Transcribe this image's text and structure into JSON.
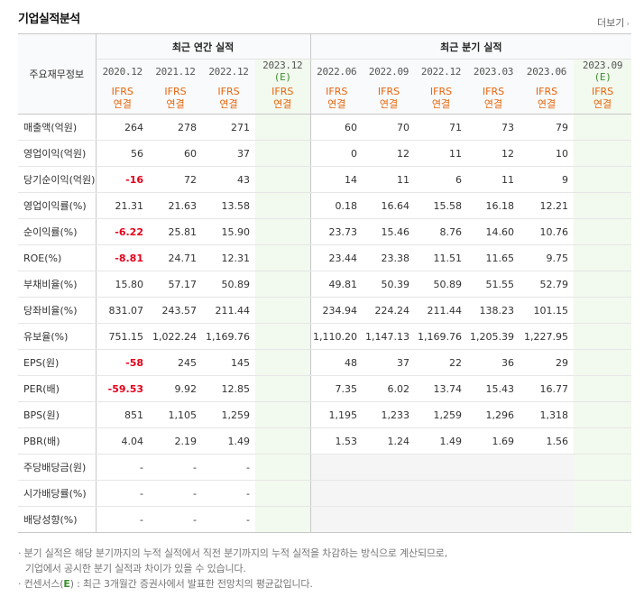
{
  "header": {
    "title": "기업실적분석",
    "more_label": "더보기"
  },
  "table": {
    "corner_label": "주요재무정보",
    "annual_label": "최근 연간 실적",
    "quarter_label": "최근 분기 실적",
    "annual_periods": [
      "2020.12",
      "2021.12",
      "2022.12",
      "2023.12",
      "(E)"
    ],
    "quarter_periods": [
      "2022.06",
      "2022.09",
      "2022.12",
      "2023.03",
      "2023.06",
      "2023.09",
      "(E)"
    ],
    "basis_top": "IFRS",
    "basis_bottom": "연결",
    "rows": [
      {
        "label": "매출액(억원)",
        "annual": [
          "264",
          "278",
          "271",
          ""
        ],
        "quarter": [
          "60",
          "70",
          "71",
          "73",
          "79",
          ""
        ]
      },
      {
        "label": "영업이익(억원)",
        "annual": [
          "56",
          "60",
          "37",
          ""
        ],
        "quarter": [
          "0",
          "12",
          "11",
          "12",
          "10",
          ""
        ]
      },
      {
        "label": "당기순이익(억원)",
        "annual": [
          "-16",
          "72",
          "43",
          ""
        ],
        "quarter": [
          "14",
          "11",
          "6",
          "11",
          "9",
          ""
        ]
      },
      {
        "label": "영업이익률(%)",
        "annual": [
          "21.31",
          "21.63",
          "13.58",
          ""
        ],
        "quarter": [
          "0.18",
          "16.64",
          "15.58",
          "16.18",
          "12.21",
          ""
        ]
      },
      {
        "label": "순이익률(%)",
        "annual": [
          "-6.22",
          "25.81",
          "15.90",
          ""
        ],
        "quarter": [
          "23.73",
          "15.46",
          "8.76",
          "14.60",
          "10.76",
          ""
        ]
      },
      {
        "label": "ROE(%)",
        "annual": [
          "-8.81",
          "24.71",
          "12.31",
          ""
        ],
        "quarter": [
          "23.44",
          "23.38",
          "11.51",
          "11.65",
          "9.75",
          ""
        ]
      },
      {
        "label": "부채비율(%)",
        "annual": [
          "15.80",
          "57.17",
          "50.89",
          ""
        ],
        "quarter": [
          "49.81",
          "50.39",
          "50.89",
          "51.55",
          "52.79",
          ""
        ]
      },
      {
        "label": "당좌비율(%)",
        "annual": [
          "831.07",
          "243.57",
          "211.44",
          ""
        ],
        "quarter": [
          "234.94",
          "224.24",
          "211.44",
          "138.23",
          "101.15",
          ""
        ]
      },
      {
        "label": "유보율(%)",
        "annual": [
          "751.15",
          "1,022.24",
          "1,169.76",
          ""
        ],
        "quarter": [
          "1,110.20",
          "1,147.13",
          "1,169.76",
          "1,205.39",
          "1,227.95",
          ""
        ]
      },
      {
        "label": "EPS(원)",
        "annual": [
          "-58",
          "245",
          "145",
          ""
        ],
        "quarter": [
          "48",
          "37",
          "22",
          "36",
          "29",
          ""
        ]
      },
      {
        "label": "PER(배)",
        "annual": [
          "-59.53",
          "9.92",
          "12.85",
          ""
        ],
        "quarter": [
          "7.35",
          "6.02",
          "13.74",
          "15.43",
          "16.77",
          ""
        ]
      },
      {
        "label": "BPS(원)",
        "annual": [
          "851",
          "1,105",
          "1,259",
          ""
        ],
        "quarter": [
          "1,195",
          "1,233",
          "1,259",
          "1,296",
          "1,318",
          ""
        ]
      },
      {
        "label": "PBR(배)",
        "annual": [
          "4.04",
          "2.19",
          "1.49",
          ""
        ],
        "quarter": [
          "1.53",
          "1.24",
          "1.49",
          "1.69",
          "1.56",
          ""
        ]
      },
      {
        "label": "주당배당금(원)",
        "annual": [
          "-",
          "-",
          "-",
          ""
        ],
        "quarter": [
          "",
          "",
          "",
          "",
          "",
          ""
        ]
      },
      {
        "label": "시가배당률(%)",
        "annual": [
          "-",
          "-",
          "-",
          ""
        ],
        "quarter": [
          "",
          "",
          "",
          "",
          "",
          ""
        ]
      },
      {
        "label": "배당성향(%)",
        "annual": [
          "-",
          "-",
          "-",
          ""
        ],
        "quarter": [
          "",
          "",
          "",
          "",
          "",
          ""
        ]
      }
    ]
  },
  "notes": {
    "line1": "· 분기 실적은 해당 분기까지의 누적 실적에서 직전 분기까지의 누적 실적을 차감하는 방식으로 계산되므로,",
    "line2": "기업에서 공시한 분기 실적과 차이가 있을 수 있습니다.",
    "line3_pre": "· 컨센서스(",
    "line3_e": "E",
    "line3_post": ") : 최근 3개월간 증권사에서 발표한 전망치의 평균값입니다."
  }
}
